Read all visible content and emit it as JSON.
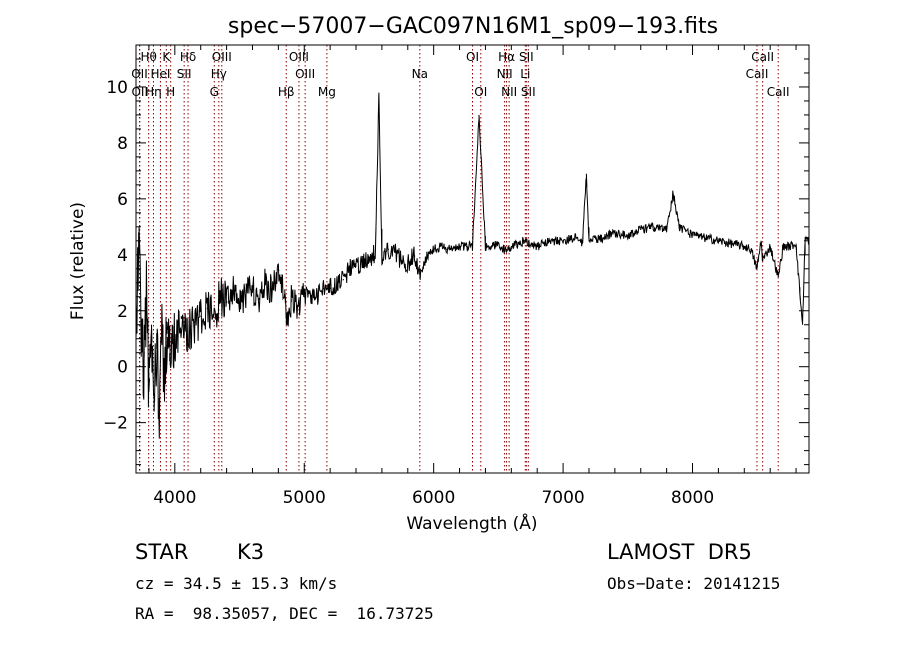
{
  "chart_data": {
    "type": "line",
    "title": "spec−57007−GAC097N16M1_sp09−193.fits",
    "xlabel": "Wavelength (Å)",
    "ylabel": "Flux (relative)",
    "xlim": [
      3700,
      8900
    ],
    "ylim": [
      -3.8,
      11.5
    ],
    "xticks": [
      4000,
      5000,
      6000,
      7000,
      8000
    ],
    "yticks": [
      -2,
      0,
      2,
      4,
      6,
      8,
      10
    ],
    "ytick_labels": [
      "−2",
      "0",
      "2",
      "4",
      "6",
      "8",
      "10"
    ],
    "line_color": "#000000",
    "marker_color": "#8b0000",
    "grid": false,
    "spectrum_anchors": [
      [
        3700,
        1.0
      ],
      [
        3720,
        4.8
      ],
      [
        3740,
        1.0
      ],
      [
        3760,
        0.0
      ],
      [
        3780,
        2.6
      ],
      [
        3800,
        -0.9
      ],
      [
        3820,
        1.5
      ],
      [
        3840,
        -1.6
      ],
      [
        3860,
        1.2
      ],
      [
        3880,
        -1.7
      ],
      [
        3900,
        1.4
      ],
      [
        3920,
        -0.5
      ],
      [
        3940,
        1.6
      ],
      [
        3960,
        0.2
      ],
      [
        3980,
        1.5
      ],
      [
        4000,
        0.6
      ],
      [
        4050,
        1.8
      ],
      [
        4100,
        1.2
      ],
      [
        4150,
        1.6
      ],
      [
        4200,
        1.8
      ],
      [
        4250,
        2.1
      ],
      [
        4300,
        1.6
      ],
      [
        4350,
        2.5
      ],
      [
        4400,
        2.3
      ],
      [
        4450,
        2.7
      ],
      [
        4500,
        2.3
      ],
      [
        4550,
        2.6
      ],
      [
        4600,
        2.8
      ],
      [
        4650,
        2.4
      ],
      [
        4700,
        3.0
      ],
      [
        4750,
        2.7
      ],
      [
        4800,
        3.5
      ],
      [
        4850,
        2.7
      ],
      [
        4861,
        1.5
      ],
      [
        4900,
        2.4
      ],
      [
        4950,
        2.2
      ],
      [
        5000,
        2.5
      ],
      [
        5050,
        2.6
      ],
      [
        5100,
        2.5
      ],
      [
        5150,
        2.8
      ],
      [
        5200,
        2.8
      ],
      [
        5250,
        2.9
      ],
      [
        5300,
        3.1
      ],
      [
        5350,
        3.5
      ],
      [
        5400,
        3.6
      ],
      [
        5450,
        3.7
      ],
      [
        5500,
        3.8
      ],
      [
        5550,
        4.1
      ],
      [
        5577,
        9.8
      ],
      [
        5600,
        3.9
      ],
      [
        5650,
        4.2
      ],
      [
        5700,
        4.1
      ],
      [
        5750,
        3.8
      ],
      [
        5800,
        3.7
      ],
      [
        5850,
        4.0
      ],
      [
        5893,
        3.3
      ],
      [
        5950,
        4.0
      ],
      [
        6000,
        4.2
      ],
      [
        6050,
        4.3
      ],
      [
        6100,
        4.2
      ],
      [
        6150,
        4.2
      ],
      [
        6200,
        4.3
      ],
      [
        6250,
        4.3
      ],
      [
        6300,
        4.3
      ],
      [
        6350,
        9.0
      ],
      [
        6400,
        4.3
      ],
      [
        6450,
        4.3
      ],
      [
        6500,
        4.4
      ],
      [
        6563,
        4.1
      ],
      [
        6600,
        4.3
      ],
      [
        6700,
        4.5
      ],
      [
        6800,
        4.3
      ],
      [
        6900,
        4.5
      ],
      [
        7000,
        4.5
      ],
      [
        7100,
        4.6
      ],
      [
        7150,
        4.4
      ],
      [
        7180,
        6.9
      ],
      [
        7200,
        4.5
      ],
      [
        7300,
        4.6
      ],
      [
        7400,
        4.8
      ],
      [
        7500,
        4.7
      ],
      [
        7600,
        4.9
      ],
      [
        7700,
        5.0
      ],
      [
        7800,
        4.9
      ],
      [
        7850,
        6.2
      ],
      [
        7900,
        5.0
      ],
      [
        8000,
        4.7
      ],
      [
        8100,
        4.6
      ],
      [
        8200,
        4.5
      ],
      [
        8300,
        4.4
      ],
      [
        8400,
        4.3
      ],
      [
        8450,
        4.2
      ],
      [
        8498,
        3.5
      ],
      [
        8530,
        4.5
      ],
      [
        8542,
        3.8
      ],
      [
        8600,
        4.3
      ],
      [
        8662,
        3.2
      ],
      [
        8700,
        4.3
      ],
      [
        8750,
        4.3
      ],
      [
        8800,
        4.4
      ],
      [
        8830,
        2.6
      ],
      [
        8850,
        1.5
      ],
      [
        8870,
        4.6
      ],
      [
        8900,
        4.5
      ]
    ],
    "lines": [
      {
        "label": "Hθ",
        "wavelength": 3798,
        "row": 0
      },
      {
        "label": "K",
        "wavelength": 3934,
        "row": 0
      },
      {
        "label": "Hδ",
        "wavelength": 4102,
        "row": 0
      },
      {
        "label": "OIII",
        "wavelength": 4363,
        "row": 0
      },
      {
        "label": "OIII",
        "wavelength": 4959,
        "row": 0
      },
      {
        "label": "OI",
        "wavelength": 6300,
        "row": 0
      },
      {
        "label": "Hα",
        "wavelength": 6563,
        "row": 0
      },
      {
        "label": "SII",
        "wavelength": 6716,
        "row": 0
      },
      {
        "label": "CaII",
        "wavelength": 8542,
        "row": 0
      },
      {
        "label": "OII",
        "wavelength": 3727,
        "row": 1
      },
      {
        "label": "HeI",
        "wavelength": 3889,
        "row": 1
      },
      {
        "label": "SII",
        "wavelength": 4072,
        "row": 1
      },
      {
        "label": "Hγ",
        "wavelength": 4340,
        "row": 1
      },
      {
        "label": "OIII",
        "wavelength": 5007,
        "row": 1
      },
      {
        "label": "Na",
        "wavelength": 5893,
        "row": 1
      },
      {
        "label": "NII",
        "wavelength": 6548,
        "row": 1
      },
      {
        "label": "Li",
        "wavelength": 6708,
        "row": 1
      },
      {
        "label": "CaII",
        "wavelength": 8498,
        "row": 1
      },
      {
        "label": "OII",
        "wavelength": 3729,
        "row": 2
      },
      {
        "label": "Hη",
        "wavelength": 3835,
        "row": 2
      },
      {
        "label": "H",
        "wavelength": 3968,
        "row": 2
      },
      {
        "label": "G",
        "wavelength": 4305,
        "row": 2
      },
      {
        "label": "Hβ",
        "wavelength": 4861,
        "row": 2
      },
      {
        "label": "Mg",
        "wavelength": 5175,
        "row": 2
      },
      {
        "label": "OI",
        "wavelength": 6364,
        "row": 2
      },
      {
        "label": "NII",
        "wavelength": 6583,
        "row": 2
      },
      {
        "label": "SII",
        "wavelength": 6731,
        "row": 2
      },
      {
        "label": "CaII",
        "wavelength": 8662,
        "row": 2
      }
    ]
  },
  "info": {
    "object_class": "STAR",
    "subclass": "K3",
    "survey": "LAMOST  DR5",
    "cz_text": "cz = 34.5 ± 15.3 km/s",
    "obs_date": "Obs−Date: 20141215",
    "coords": "RA =  98.35057, DEC =  16.73725"
  }
}
